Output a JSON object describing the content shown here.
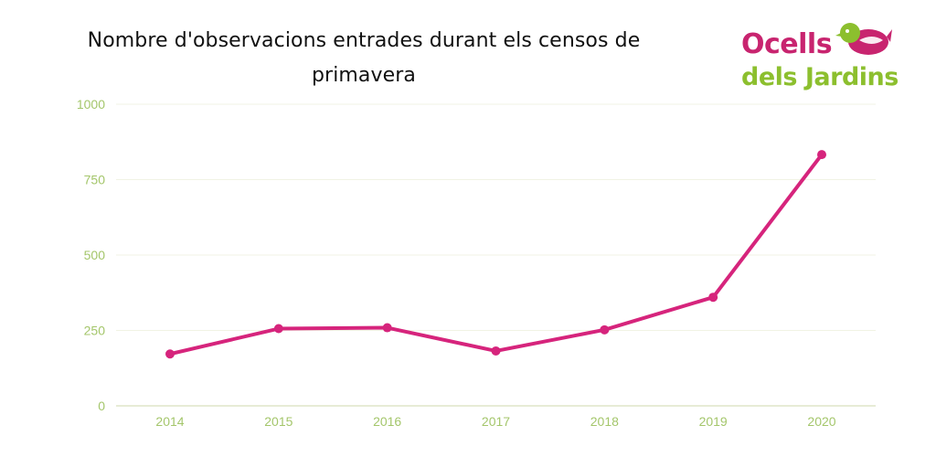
{
  "title": "Nombre d'observacions entrades durant els censos de primavera",
  "logo": {
    "line1": "Ocells",
    "line2": "dels Jardins",
    "bird_icon": "bird-icon",
    "colors": {
      "pink": "#c8246f",
      "green": "#8cbf2e"
    }
  },
  "chart_data": {
    "type": "line",
    "title": "Nombre d'observacions entrades durant els censos de primavera",
    "xlabel": "",
    "ylabel": "",
    "categories": [
      "2014",
      "2015",
      "2016",
      "2017",
      "2018",
      "2019",
      "2020"
    ],
    "series": [
      {
        "values": [
          172,
          256,
          259,
          182,
          252,
          360,
          833
        ],
        "color": "#d6247c"
      }
    ],
    "ylim": [
      0,
      1000
    ],
    "yticks": [
      0,
      250,
      500,
      750,
      1000
    ],
    "grid": true,
    "legend": "none",
    "colors": {
      "line": "#d6247c",
      "axis_text": "#a4c66b",
      "grid": "#f1f3e4",
      "axis": "#dfe6c8"
    }
  }
}
